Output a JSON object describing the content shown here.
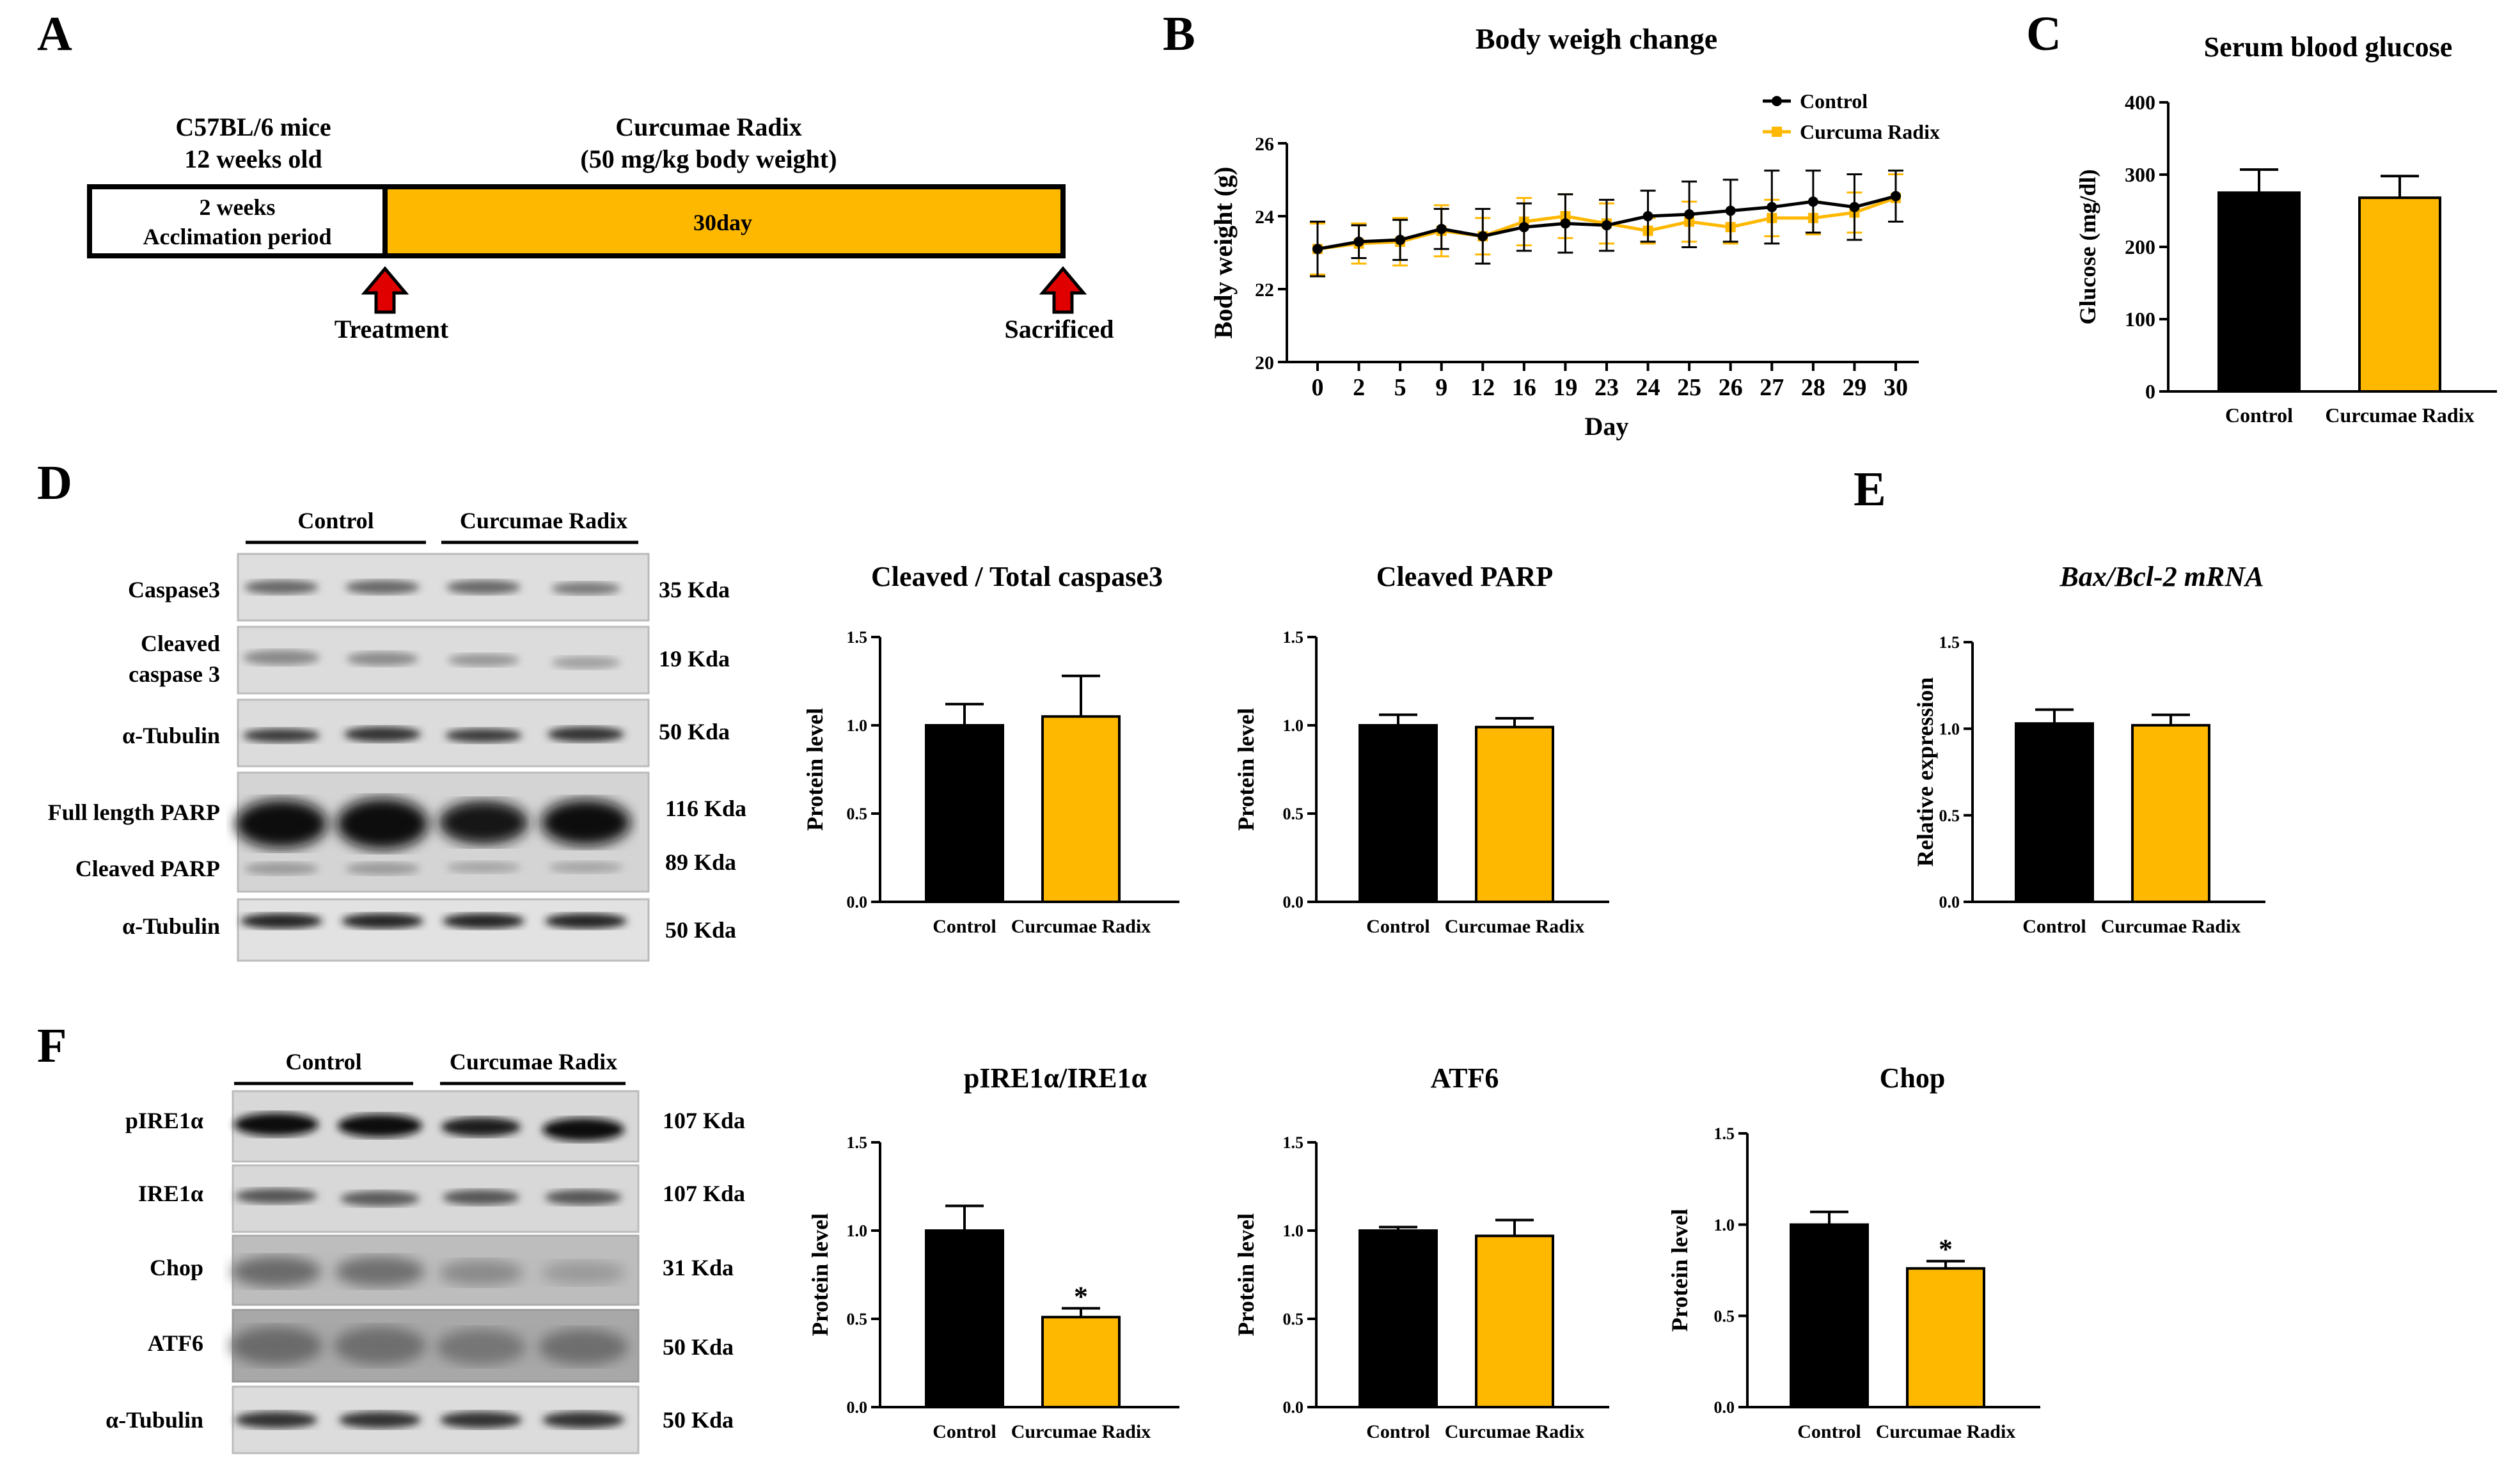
{
  "figure": {
    "panels": {
      "a": "A",
      "b": "B",
      "c": "C",
      "d": "D",
      "e": "E",
      "f": "F"
    },
    "colors": {
      "control": "#000000",
      "treatment": "#FFB800",
      "arrow": "#E00000",
      "blot_bg": "#dcdcdc"
    },
    "timeline": {
      "mice_line1": "C57BL/6 mice",
      "mice_line2": "12 weeks old",
      "drug_line1": "Curcumae Radix",
      "drug_line2": "(50 mg/kg body weight)",
      "acclim_line1": "2 weeks",
      "acclim_line2": "Acclimation period",
      "duration": "30day",
      "treatment_label": "Treatment",
      "sacrificed_label": "Sacrificed",
      "treatment_days": 30,
      "acclimation_weeks": 2
    },
    "blot_d": {
      "group_control": "Control",
      "group_treatment": "Curcumae Radix",
      "rows": [
        {
          "label1": "Caspase3",
          "label2": "",
          "kda": "35 Kda"
        },
        {
          "label1": "Cleaved",
          "label2": "caspase 3",
          "kda": "19 Kda"
        },
        {
          "label1": "α-Tubulin",
          "label2": "",
          "kda": "50 Kda"
        },
        {
          "label1": "Full length PARP",
          "label2": "",
          "kda": "116 Kda"
        },
        {
          "label1": "Cleaved PARP",
          "label2": "",
          "kda": "89 Kda"
        },
        {
          "label1": "α-Tubulin",
          "label2": "",
          "kda": "50 Kda"
        }
      ]
    },
    "blot_f": {
      "group_control": "Control",
      "group_treatment": "Curcumae Radix",
      "rows": [
        {
          "label": "pIRE1α",
          "kda": "107 Kda"
        },
        {
          "label": "IRE1α",
          "kda": "107 Kda"
        },
        {
          "label": "Chop",
          "kda": "31 Kda"
        },
        {
          "label": "ATF6",
          "kda": "50 Kda"
        },
        {
          "label": "α-Tubulin",
          "kda": "50 Kda"
        }
      ]
    }
  },
  "chart_data": [
    {
      "id": "body_weight",
      "type": "line",
      "title": "Body weigh change",
      "xlabel": "Day",
      "ylabel": "Body weight (g)",
      "ylim": [
        20,
        26
      ],
      "yticks": [
        "20",
        "22",
        "24",
        "26"
      ],
      "categories": [
        "0",
        "2",
        "5",
        "9",
        "12",
        "16",
        "19",
        "23",
        "24",
        "25",
        "26",
        "27",
        "28",
        "29",
        "30"
      ],
      "series": [
        {
          "name": "Control",
          "color": "#000000",
          "values": [
            23.1,
            23.3,
            23.35,
            23.65,
            23.45,
            23.7,
            23.8,
            23.75,
            24.0,
            24.05,
            24.15,
            24.25,
            24.4,
            24.25,
            24.55
          ],
          "errors": [
            0.75,
            0.45,
            0.55,
            0.55,
            0.75,
            0.65,
            0.8,
            0.7,
            0.7,
            0.9,
            0.85,
            1.0,
            0.85,
            0.9,
            0.7
          ]
        },
        {
          "name": "Curcuma Radix",
          "color": "#FFB800",
          "values": [
            23.1,
            23.25,
            23.3,
            23.6,
            23.45,
            23.85,
            24.0,
            23.8,
            23.6,
            23.85,
            23.7,
            23.95,
            23.95,
            24.1,
            24.5
          ],
          "errors": [
            0.7,
            0.55,
            0.65,
            0.7,
            0.5,
            0.65,
            0.6,
            0.55,
            0.35,
            0.55,
            0.45,
            0.5,
            0.45,
            0.55,
            0.65
          ]
        }
      ]
    },
    {
      "id": "glucose",
      "type": "bar",
      "title": "Serum blood glucose",
      "ylabel": "Glucose (mg/dl)",
      "ylim": [
        0,
        400
      ],
      "yticks": [
        "0",
        "100",
        "200",
        "300",
        "400"
      ],
      "categories": [
        "Control",
        "Curcumae Radix"
      ],
      "values": [
        275,
        268
      ],
      "errors": [
        32,
        30
      ],
      "sig": [
        "",
        ""
      ]
    },
    {
      "id": "cleaved_total_casp3",
      "type": "bar",
      "title": "Cleaved / Total caspase3",
      "ylabel": "Protein level",
      "ylim": [
        0,
        1.5
      ],
      "yticks": [
        "0.0",
        "0.5",
        "1.0",
        "1.5"
      ],
      "categories": [
        "Control",
        "Curcumae Radix"
      ],
      "values": [
        1.0,
        1.05
      ],
      "errors": [
        0.12,
        0.23
      ],
      "sig": [
        "",
        ""
      ]
    },
    {
      "id": "cleaved_parp",
      "type": "bar",
      "title": "Cleaved PARP",
      "ylabel": "Protein level",
      "ylim": [
        0,
        1.5
      ],
      "yticks": [
        "0.0",
        "0.5",
        "1.0",
        "1.5"
      ],
      "categories": [
        "Control",
        "Curcumae Radix"
      ],
      "values": [
        1.0,
        0.99
      ],
      "errors": [
        0.06,
        0.05
      ],
      "sig": [
        "",
        ""
      ]
    },
    {
      "id": "bax_bcl2",
      "type": "bar",
      "title": "Bax/Bcl-2 mRNA",
      "italic": true,
      "ylabel": "Relative expression",
      "ylim": [
        0,
        1.5
      ],
      "yticks": [
        "0.0",
        "0.5",
        "1.0",
        "1.5"
      ],
      "categories": [
        "Control",
        "Curcumae Radix"
      ],
      "values": [
        1.03,
        1.02
      ],
      "errors": [
        0.08,
        0.06
      ],
      "sig": [
        "",
        ""
      ]
    },
    {
      "id": "pire1_ire1",
      "type": "bar",
      "title": "pIRE1α/IRE1α",
      "ylabel": "Protein level",
      "ylim": [
        0,
        1.5
      ],
      "yticks": [
        "0.0",
        "0.5",
        "1.0",
        "1.5"
      ],
      "categories": [
        "Control",
        "Curcumae Radix"
      ],
      "values": [
        1.0,
        0.51
      ],
      "errors": [
        0.14,
        0.05
      ],
      "sig": [
        "",
        "*"
      ]
    },
    {
      "id": "atf6",
      "type": "bar",
      "title": "ATF6",
      "ylabel": "Protein level",
      "ylim": [
        0,
        1.5
      ],
      "yticks": [
        "0.0",
        "0.5",
        "1.0",
        "1.5"
      ],
      "categories": [
        "Control",
        "Curcumae Radix"
      ],
      "values": [
        1.0,
        0.97
      ],
      "errors": [
        0.02,
        0.09
      ],
      "sig": [
        "",
        ""
      ]
    },
    {
      "id": "chop",
      "type": "bar",
      "title": "Chop",
      "ylabel": "Protein level",
      "ylim": [
        0,
        1.5
      ],
      "yticks": [
        "0.0",
        "0.5",
        "1.0",
        "1.5"
      ],
      "categories": [
        "Control",
        "Curcumae Radix"
      ],
      "values": [
        1.0,
        0.76
      ],
      "errors": [
        0.07,
        0.04
      ],
      "sig": [
        "",
        "*"
      ]
    }
  ]
}
